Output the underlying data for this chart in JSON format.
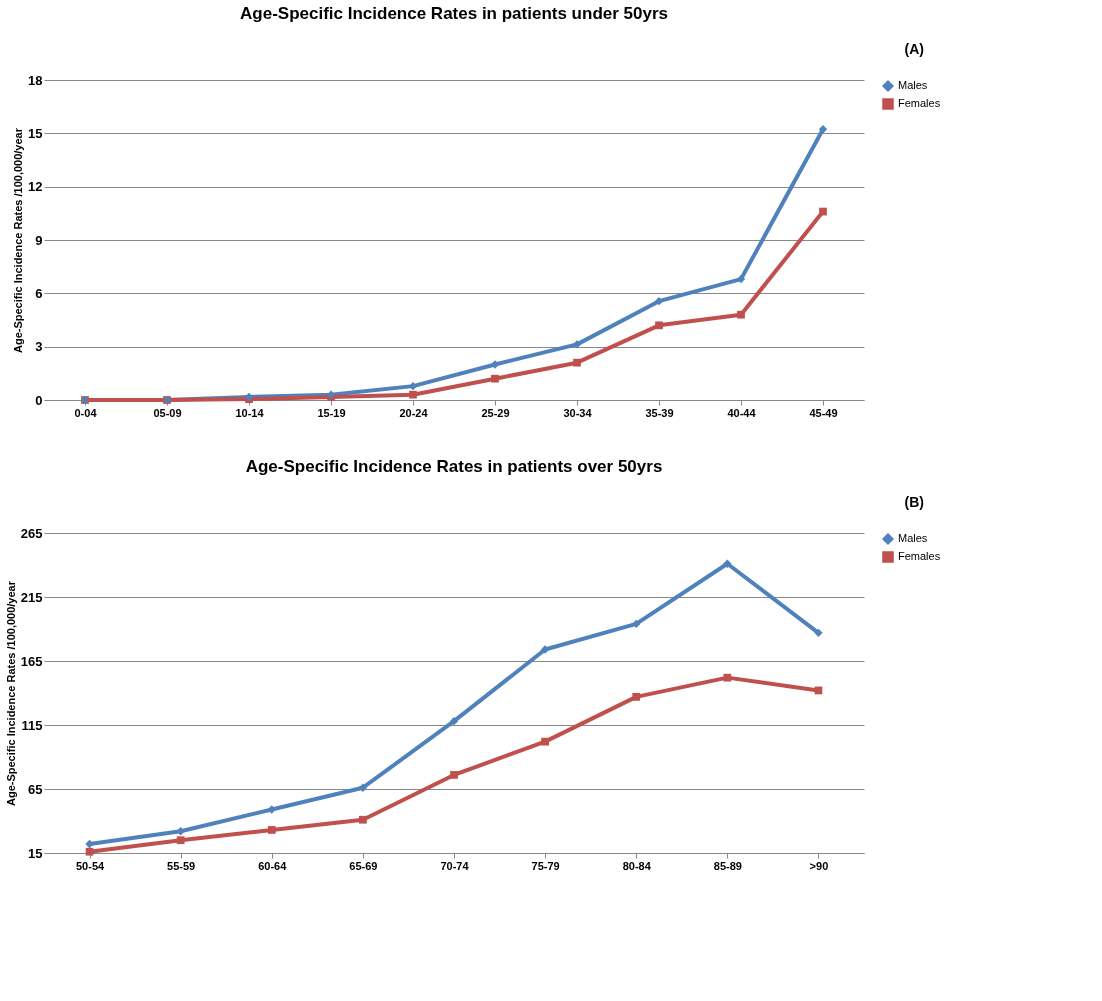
{
  "chart_data": [
    {
      "type": "line",
      "title": "Age-Specific Incidence Rates in patients under 50yrs",
      "ylabel": "Age-Specific Incidence Rates /100,000/year",
      "annotations": [
        "(A)"
      ],
      "categories": [
        "0-04",
        "05-09",
        "10-14",
        "15-19",
        "20-24",
        "25-29",
        "30-34",
        "35-39",
        "40-44",
        "45-49"
      ],
      "series": [
        {
          "name": "Males",
          "color": "#4f81bd",
          "marker": "diamond",
          "values": [
            0,
            0,
            0.17,
            0.3,
            0.78,
            2.0,
            3.13,
            5.56,
            6.8,
            15.23
          ]
        },
        {
          "name": "Females",
          "color": "#c0504d",
          "marker": "square",
          "values": [
            0,
            0,
            0.05,
            0.17,
            0.3,
            1.2,
            2.1,
            4.2,
            4.8,
            10.6
          ]
        }
      ],
      "ylim": [
        0,
        18
      ],
      "yticks": [
        0,
        3,
        6,
        9,
        12,
        15,
        18
      ],
      "grid": "y",
      "legend": "right"
    },
    {
      "type": "line",
      "title": "Age-Specific Incidence Rates in patients over 50yrs",
      "ylabel": "Age-Specific Incidence Rates /100,000/year",
      "annotations": [
        "(B)"
      ],
      "categories": [
        "50-54",
        "55-59",
        "60-64",
        "65-69",
        "70-74",
        "75-79",
        "80-84",
        "85-89",
        ">90"
      ],
      "series": [
        {
          "name": "Males",
          "color": "#4f81bd",
          "marker": "diamond",
          "values": [
            22,
            32,
            49,
            66,
            118,
            174,
            194,
            241,
            187
          ]
        },
        {
          "name": "Females",
          "color": "#c0504d",
          "marker": "square",
          "values": [
            16,
            25,
            33,
            41,
            76,
            102,
            137,
            152,
            142
          ]
        }
      ],
      "ylim": [
        15,
        265
      ],
      "yticks": [
        15,
        65,
        115,
        165,
        215,
        265
      ],
      "grid": "y",
      "legend": "right"
    }
  ]
}
